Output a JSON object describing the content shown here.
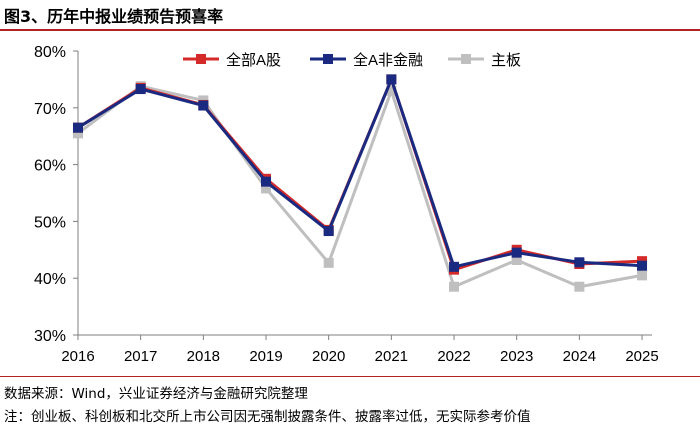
{
  "title": "图3、历年中报业绩预告预喜率",
  "source": "数据来源：Wind，兴业证券经济与金融研究院整理",
  "note": "注：创业板、科创板和北交所上市公司因无强制披露条件、披露率过低，无实际参考价值",
  "chart_data": {
    "type": "line",
    "title": "历年中报业绩预告预喜率",
    "xlabel": "",
    "ylabel": "",
    "x": [
      "2016",
      "2017",
      "2018",
      "2019",
      "2020",
      "2021",
      "2022",
      "2023",
      "2024",
      "2025"
    ],
    "ylim": [
      30,
      80
    ],
    "yticks": [
      30,
      40,
      50,
      60,
      70,
      80
    ],
    "ytick_labels": [
      "30%",
      "40%",
      "50%",
      "60%",
      "70%",
      "80%"
    ],
    "grid": false,
    "legend_position": "top-center",
    "series": [
      {
        "name": "全部A股",
        "color": "#d42a2a",
        "values": [
          66.5,
          73.5,
          70.5,
          57.5,
          48.5,
          75.0,
          41.5,
          45.0,
          42.5,
          43.0
        ]
      },
      {
        "name": "全A非金融",
        "color": "#1a2a80",
        "values": [
          66.5,
          73.3,
          70.4,
          57.0,
          48.3,
          75.0,
          42.0,
          44.5,
          42.8,
          42.2
        ]
      },
      {
        "name": "主板",
        "color": "#bfbfbf",
        "values": [
          65.5,
          73.8,
          71.3,
          55.8,
          42.7,
          73.0,
          38.5,
          43.2,
          38.5,
          40.5
        ]
      }
    ]
  }
}
